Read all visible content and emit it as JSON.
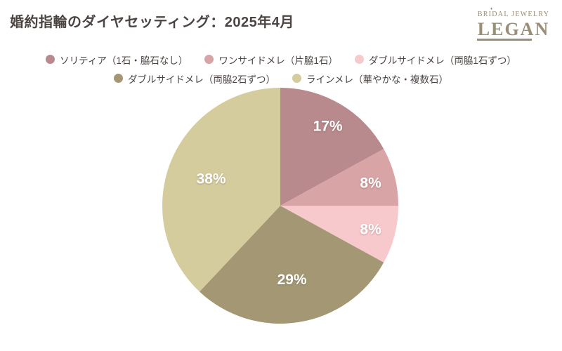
{
  "header": {
    "title": "婚約指輪のダイヤセッティング：2025年4月"
  },
  "logo": {
    "brand_top": "BRIDAL JEWELRY",
    "brand_name": "LEGAN",
    "diamond_icon": "♦",
    "color": "#9a8e76"
  },
  "chart_data": {
    "type": "pie",
    "title": "婚約指輪のダイヤセッティング：2025年4月",
    "start_angle_deg_from_top": 0,
    "direction": "clockwise",
    "legend_position": "top",
    "legend_rows": [
      3,
      2
    ],
    "background_color": "#ffffff",
    "slices": [
      {
        "label": "ソリティア（1石・脇石なし）",
        "value": 17,
        "display": "17%",
        "color": "#b8898d"
      },
      {
        "label": "ワンサイドメレ（片脇1石）",
        "value": 8,
        "display": "8%",
        "color": "#d8a4a5"
      },
      {
        "label": "ダブルサイドメレ（両脇1石ずつ）",
        "value": 8,
        "display": "8%",
        "color": "#f7c9cd"
      },
      {
        "label": "ダブルサイドメレ（両脇2石ずつ）",
        "value": 29,
        "display": "29%",
        "color": "#a39873"
      },
      {
        "label": "ラインメレ（華やかな・複数石）",
        "value": 38,
        "display": "38%",
        "color": "#d5cc9e"
      }
    ]
  }
}
